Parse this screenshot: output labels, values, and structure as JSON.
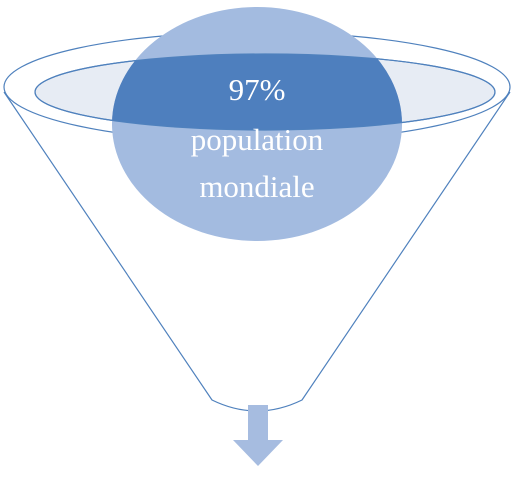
{
  "nodes": [
    {
      "lines": [
        "97%",
        "population",
        "mondiale"
      ]
    }
  ]
}
